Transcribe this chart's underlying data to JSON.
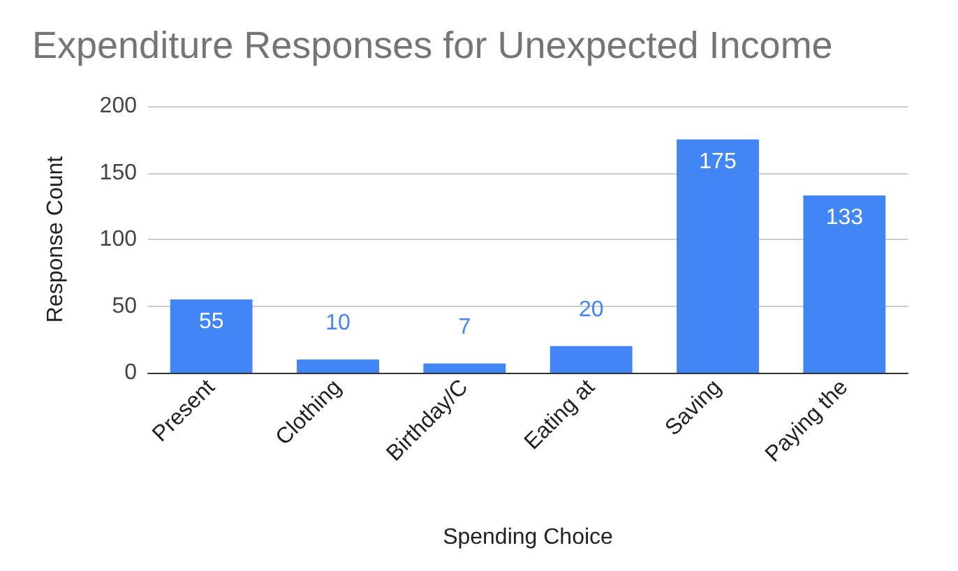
{
  "chart_data": {
    "type": "bar",
    "title": "Expenditure Responses for Unexpected Income",
    "xlabel": "Spending Choice",
    "ylabel": "Response Count",
    "categories": [
      "Present",
      "Clothing",
      "Birthday/C",
      "Eating at",
      "Saving",
      "Paying the"
    ],
    "values": [
      55,
      10,
      7,
      20,
      175,
      133
    ],
    "color": "#4285f4",
    "ylim": [
      0,
      200
    ],
    "yticks": [
      0,
      50,
      100,
      150,
      200
    ],
    "grid": "y",
    "data_labels": true
  }
}
